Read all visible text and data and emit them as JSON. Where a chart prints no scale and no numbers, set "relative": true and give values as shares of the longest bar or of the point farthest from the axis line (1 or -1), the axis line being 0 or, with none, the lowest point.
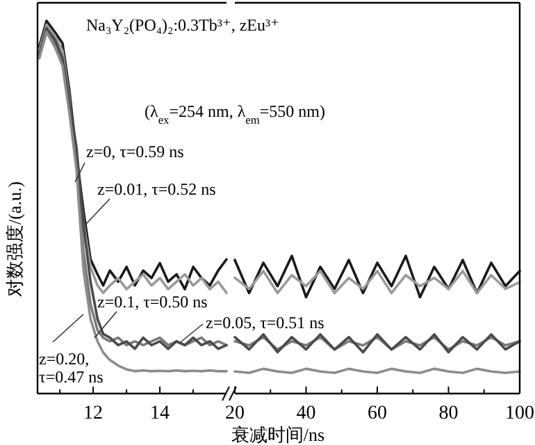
{
  "chart_data": [
    {
      "type": "line",
      "relative": true,
      "title": "Na₃Y₂(PO₄)₂:0.3Tb³⁺, zEu³⁺",
      "subtitle": "(λ$_{ex}$=254 nm, λ$_{em}$=550 nm)",
      "ylabel": "对数强度/(a.u.)",
      "xlim": [
        10.33,
        16
      ],
      "xticks": [
        {
          "value": 11,
          "label": null
        },
        12,
        {
          "value": 13,
          "label": null
        },
        14,
        {
          "value": 15,
          "label": null
        }
      ],
      "series": [
        {
          "name": "z=0, τ=0.59 ns",
          "color": "#1a1a1a",
          "x": [
            10.38,
            10.6,
            10.85,
            11.08,
            11.29,
            11.5,
            11.71,
            11.92,
            12.13,
            12.3,
            12.5,
            12.75,
            13,
            13.25,
            13.5,
            13.75,
            14,
            14.25,
            14.5,
            14.75,
            15,
            15.25,
            15.5,
            15.75,
            16
          ],
          "values": [
            0.93,
            1.0,
            0.97,
            0.94,
            0.81,
            0.64,
            0.49,
            0.36,
            0.32,
            0.29,
            0.33,
            0.3,
            0.34,
            0.29,
            0.33,
            0.31,
            0.35,
            0.3,
            0.32,
            0.28,
            0.34,
            0.31,
            0.29,
            0.33,
            0.36
          ]
        },
        {
          "name": "z=0.01, τ=0.52 ns",
          "color": "#9a9a9a",
          "x": [
            10.38,
            10.6,
            10.85,
            11.08,
            11.29,
            11.5,
            11.71,
            11.92,
            12.13,
            12.3,
            12.5,
            12.75,
            13,
            13.25,
            13.5,
            13.75,
            14,
            14.25,
            14.5,
            14.75,
            15,
            15.25,
            15.5,
            15.75,
            16
          ],
          "values": [
            0.92,
            0.99,
            0.96,
            0.92,
            0.79,
            0.62,
            0.46,
            0.34,
            0.29,
            0.27,
            0.29,
            0.31,
            0.28,
            0.3,
            0.32,
            0.29,
            0.31,
            0.28,
            0.3,
            0.32,
            0.29,
            0.31,
            0.28,
            0.3,
            0.27
          ]
        },
        {
          "name": "z=0.1, τ=0.50 ns",
          "color": "#7a7a7a",
          "x": [
            10.38,
            10.6,
            10.85,
            11.08,
            11.29,
            11.5,
            11.71,
            11.92,
            12.13,
            12.3,
            12.5,
            12.75,
            13,
            13.25,
            13.5,
            13.75,
            14,
            14.25,
            14.5,
            14.75,
            15,
            15.25,
            15.5,
            15.75,
            16
          ],
          "values": [
            0.9,
            0.97,
            0.94,
            0.89,
            0.76,
            0.62,
            0.38,
            0.24,
            0.17,
            0.15,
            0.14,
            0.15,
            0.13,
            0.14,
            0.13,
            0.14,
            0.15,
            0.13,
            0.14,
            0.13,
            0.14,
            0.15,
            0.13,
            0.14,
            0.13
          ]
        },
        {
          "name": "z=0.05, τ=0.51 ns",
          "color": "#4a4a4a",
          "x": [
            10.38,
            10.6,
            10.85,
            11.08,
            11.29,
            11.5,
            11.71,
            11.92,
            12.13,
            12.3,
            12.5,
            12.75,
            13,
            13.25,
            13.5,
            13.75,
            14,
            14.25,
            14.5,
            14.75,
            15,
            15.25,
            15.5,
            15.75,
            16
          ],
          "values": [
            0.91,
            0.98,
            0.95,
            0.9,
            0.78,
            0.66,
            0.45,
            0.3,
            0.2,
            0.16,
            0.15,
            0.13,
            0.14,
            0.12,
            0.15,
            0.13,
            0.14,
            0.12,
            0.14,
            0.13,
            0.15,
            0.13,
            0.14,
            0.12,
            0.13
          ]
        },
        {
          "name": "z=0.20, τ=0.47 ns",
          "color": "#8c8c8c",
          "x": [
            10.38,
            10.6,
            10.85,
            11.08,
            11.29,
            11.5,
            11.71,
            11.92,
            12.13,
            12.3,
            12.5,
            12.75,
            13,
            13.25,
            13.5,
            13.75,
            14,
            14.25,
            14.5,
            14.75,
            15,
            15.25,
            15.5,
            15.75,
            16
          ],
          "values": [
            0.9,
            0.97,
            0.93,
            0.88,
            0.75,
            0.6,
            0.33,
            0.2,
            0.14,
            0.11,
            0.09,
            0.075,
            0.065,
            0.06,
            0.062,
            0.06,
            0.061,
            0.06,
            0.062,
            0.06,
            0.061,
            0.06,
            0.062,
            0.06,
            0.06
          ]
        }
      ]
    },
    {
      "type": "line",
      "relative": true,
      "xlabel": "衰减时间/ns",
      "xlim": [
        20,
        100
      ],
      "xticks": [
        20,
        {
          "value": 30,
          "label": null
        },
        40,
        {
          "value": 50,
          "label": null
        },
        60,
        {
          "value": 70,
          "label": null
        },
        80,
        {
          "value": 90,
          "label": null
        },
        100
      ],
      "x": [
        20,
        24,
        28,
        32,
        36,
        40,
        44,
        48,
        52,
        56,
        60,
        64,
        68,
        72,
        76,
        80,
        84,
        88,
        92,
        96,
        100
      ],
      "series": [
        {
          "color": "#1a1a1a",
          "values": [
            0.97,
            0.73,
            0.95,
            0.78,
            1,
            0.7,
            0.92,
            0.76,
            0.97,
            0.73,
            0.95,
            0.78,
            1,
            0.7,
            0.92,
            0.76,
            0.97,
            0.73,
            0.95,
            0.78,
            0.89
          ]
        },
        {
          "color": "#9a9a9a",
          "values": [
            0.84,
            0.76,
            0.89,
            0.73,
            0.86,
            0.78,
            0.89,
            0.73,
            0.84,
            0.76,
            0.89,
            0.73,
            0.86,
            0.78,
            0.84,
            0.76,
            0.89,
            0.73,
            0.86,
            0.76,
            0.81
          ]
        },
        {
          "color": "#7a7a7a",
          "values": [
            0.38,
            0.35,
            0.41,
            0.32,
            0.38,
            0.35,
            0.41,
            0.32,
            0.38,
            0.35,
            0.41,
            0.32,
            0.38,
            0.35,
            0.41,
            0.32,
            0.38,
            0.35,
            0.41,
            0.35,
            0.38
          ]
        },
        {
          "color": "#4a4a4a",
          "values": [
            0.41,
            0.32,
            0.43,
            0.3,
            0.41,
            0.32,
            0.43,
            0.32,
            0.41,
            0.3,
            0.43,
            0.32,
            0.41,
            0.32,
            0.43,
            0.3,
            0.41,
            0.32,
            0.43,
            0.32,
            0.38
          ]
        },
        {
          "color": "#8c8c8c",
          "values": [
            0.16,
            0.15,
            0.18,
            0.16,
            0.15,
            0.18,
            0.16,
            0.15,
            0.18,
            0.16,
            0.15,
            0.18,
            0.16,
            0.15,
            0.18,
            0.16,
            0.15,
            0.18,
            0.16,
            0.15,
            0.16
          ]
        }
      ]
    }
  ]
}
